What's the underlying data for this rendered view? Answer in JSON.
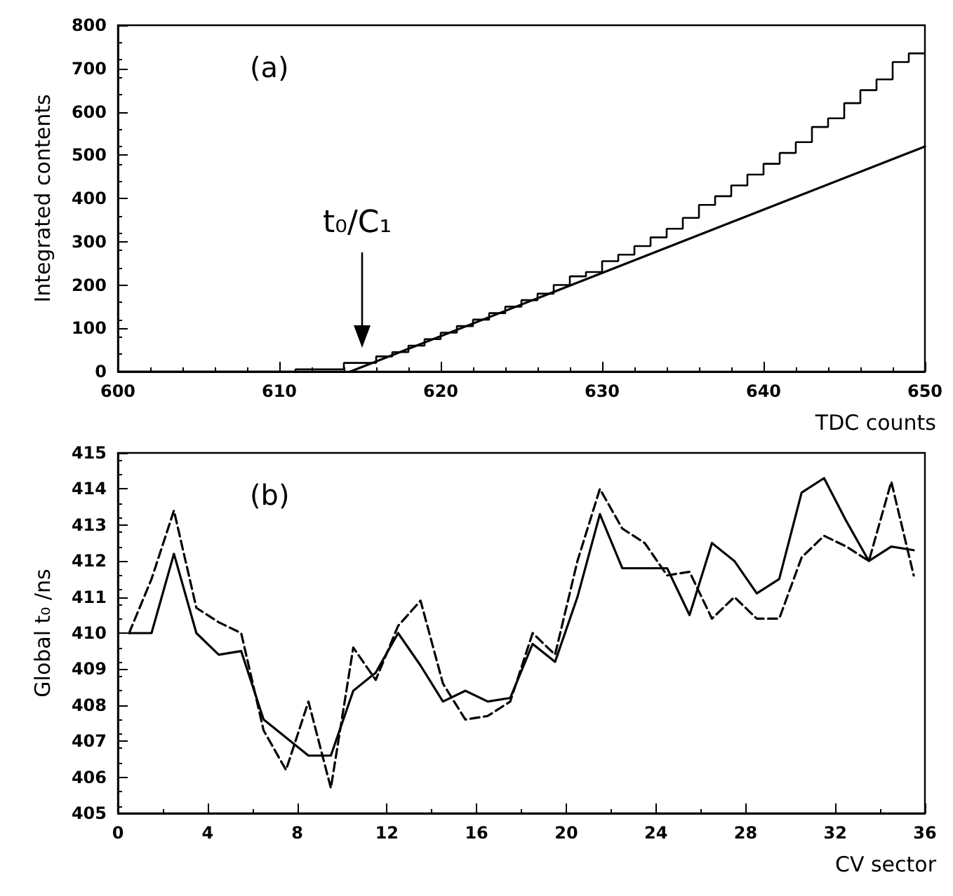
{
  "chart_data": [
    {
      "type": "histogram",
      "ylabel": "Integrated contents",
      "xlabel": "TDC counts",
      "bins": [
        600,
        601,
        602,
        603,
        604,
        605,
        606,
        607,
        608,
        609,
        610,
        611,
        612,
        613,
        614,
        615,
        616,
        617,
        618,
        619,
        620,
        621,
        622,
        623,
        624,
        625,
        626,
        627,
        628,
        629,
        630,
        631,
        632,
        633,
        634,
        635,
        636,
        637,
        638,
        639,
        640,
        641,
        642,
        643,
        644,
        645,
        646,
        647,
        648,
        649,
        650
      ],
      "values": [
        0,
        0,
        0,
        0,
        0,
        0,
        0,
        0,
        0,
        0,
        0,
        5,
        5,
        5,
        20,
        20,
        35,
        45,
        60,
        75,
        90,
        105,
        120,
        135,
        150,
        165,
        180,
        200,
        220,
        230,
        255,
        270,
        290,
        310,
        330,
        355,
        385,
        405,
        430,
        455,
        480,
        505,
        530,
        565,
        585,
        620,
        650,
        675,
        715,
        735
      ],
      "series": [
        {
          "type": "line",
          "x": [
            614.4,
            650
          ],
          "values": [
            0,
            520
          ],
          "color": "#000000"
        }
      ],
      "color": "#000000",
      "xlim": [
        600,
        650
      ],
      "xticks": [
        600,
        610,
        620,
        630,
        640,
        650
      ],
      "ylim": [
        0,
        800
      ],
      "yticks": [
        0,
        100,
        200,
        300,
        400,
        500,
        600,
        700,
        800
      ],
      "annotations": [
        "(a)",
        "t₀/C₁"
      ]
    },
    {
      "type": "line",
      "ylabel": "Global t₀ /ns",
      "xlabel": "CV sector",
      "x": [
        0.5,
        1.5,
        2.5,
        3.5,
        4.5,
        5.5,
        6.5,
        7.5,
        8.5,
        9.5,
        10.5,
        11.5,
        12.5,
        13.5,
        14.5,
        15.5,
        16.5,
        17.5,
        18.5,
        19.5,
        20.5,
        21.5,
        22.5,
        23.5,
        24.5,
        25.5,
        26.5,
        27.5,
        28.5,
        29.5,
        30.5,
        31.5,
        32.5,
        33.5,
        34.5,
        35.5
      ],
      "series": [
        {
          "color": "#000000",
          "line_style": "solid",
          "values": [
            410.0,
            410.0,
            412.2,
            410.0,
            409.4,
            409.5,
            407.6,
            407.1,
            406.6,
            406.6,
            408.4,
            408.9,
            410.0,
            409.1,
            408.1,
            408.4,
            408.1,
            408.2,
            409.7,
            409.2,
            411.0,
            413.3,
            411.8,
            411.8,
            411.8,
            410.5,
            412.5,
            412.0,
            411.1,
            411.5,
            413.9,
            414.3,
            413.1,
            412.0,
            412.4,
            412.3
          ]
        },
        {
          "color": "#000000",
          "line_style": "dashed",
          "values": [
            410.0,
            411.5,
            413.4,
            410.7,
            410.3,
            410.0,
            407.3,
            406.2,
            408.1,
            405.7,
            409.6,
            408.7,
            410.2,
            410.9,
            408.6,
            407.6,
            407.7,
            408.1,
            410.0,
            409.4,
            412.0,
            414.0,
            412.9,
            412.5,
            411.6,
            411.7,
            410.4,
            411.0,
            410.4,
            410.4,
            412.1,
            412.7,
            412.4,
            412.0,
            414.2,
            411.6
          ]
        }
      ],
      "xlim": [
        0,
        36
      ],
      "xticks": [
        0,
        4,
        8,
        12,
        16,
        20,
        24,
        28,
        32,
        36
      ],
      "ylim": [
        405,
        415
      ],
      "yticks": [
        405,
        406,
        407,
        408,
        409,
        410,
        411,
        412,
        413,
        414,
        415
      ],
      "marker": "none",
      "annotations": [
        "(b)"
      ]
    }
  ]
}
